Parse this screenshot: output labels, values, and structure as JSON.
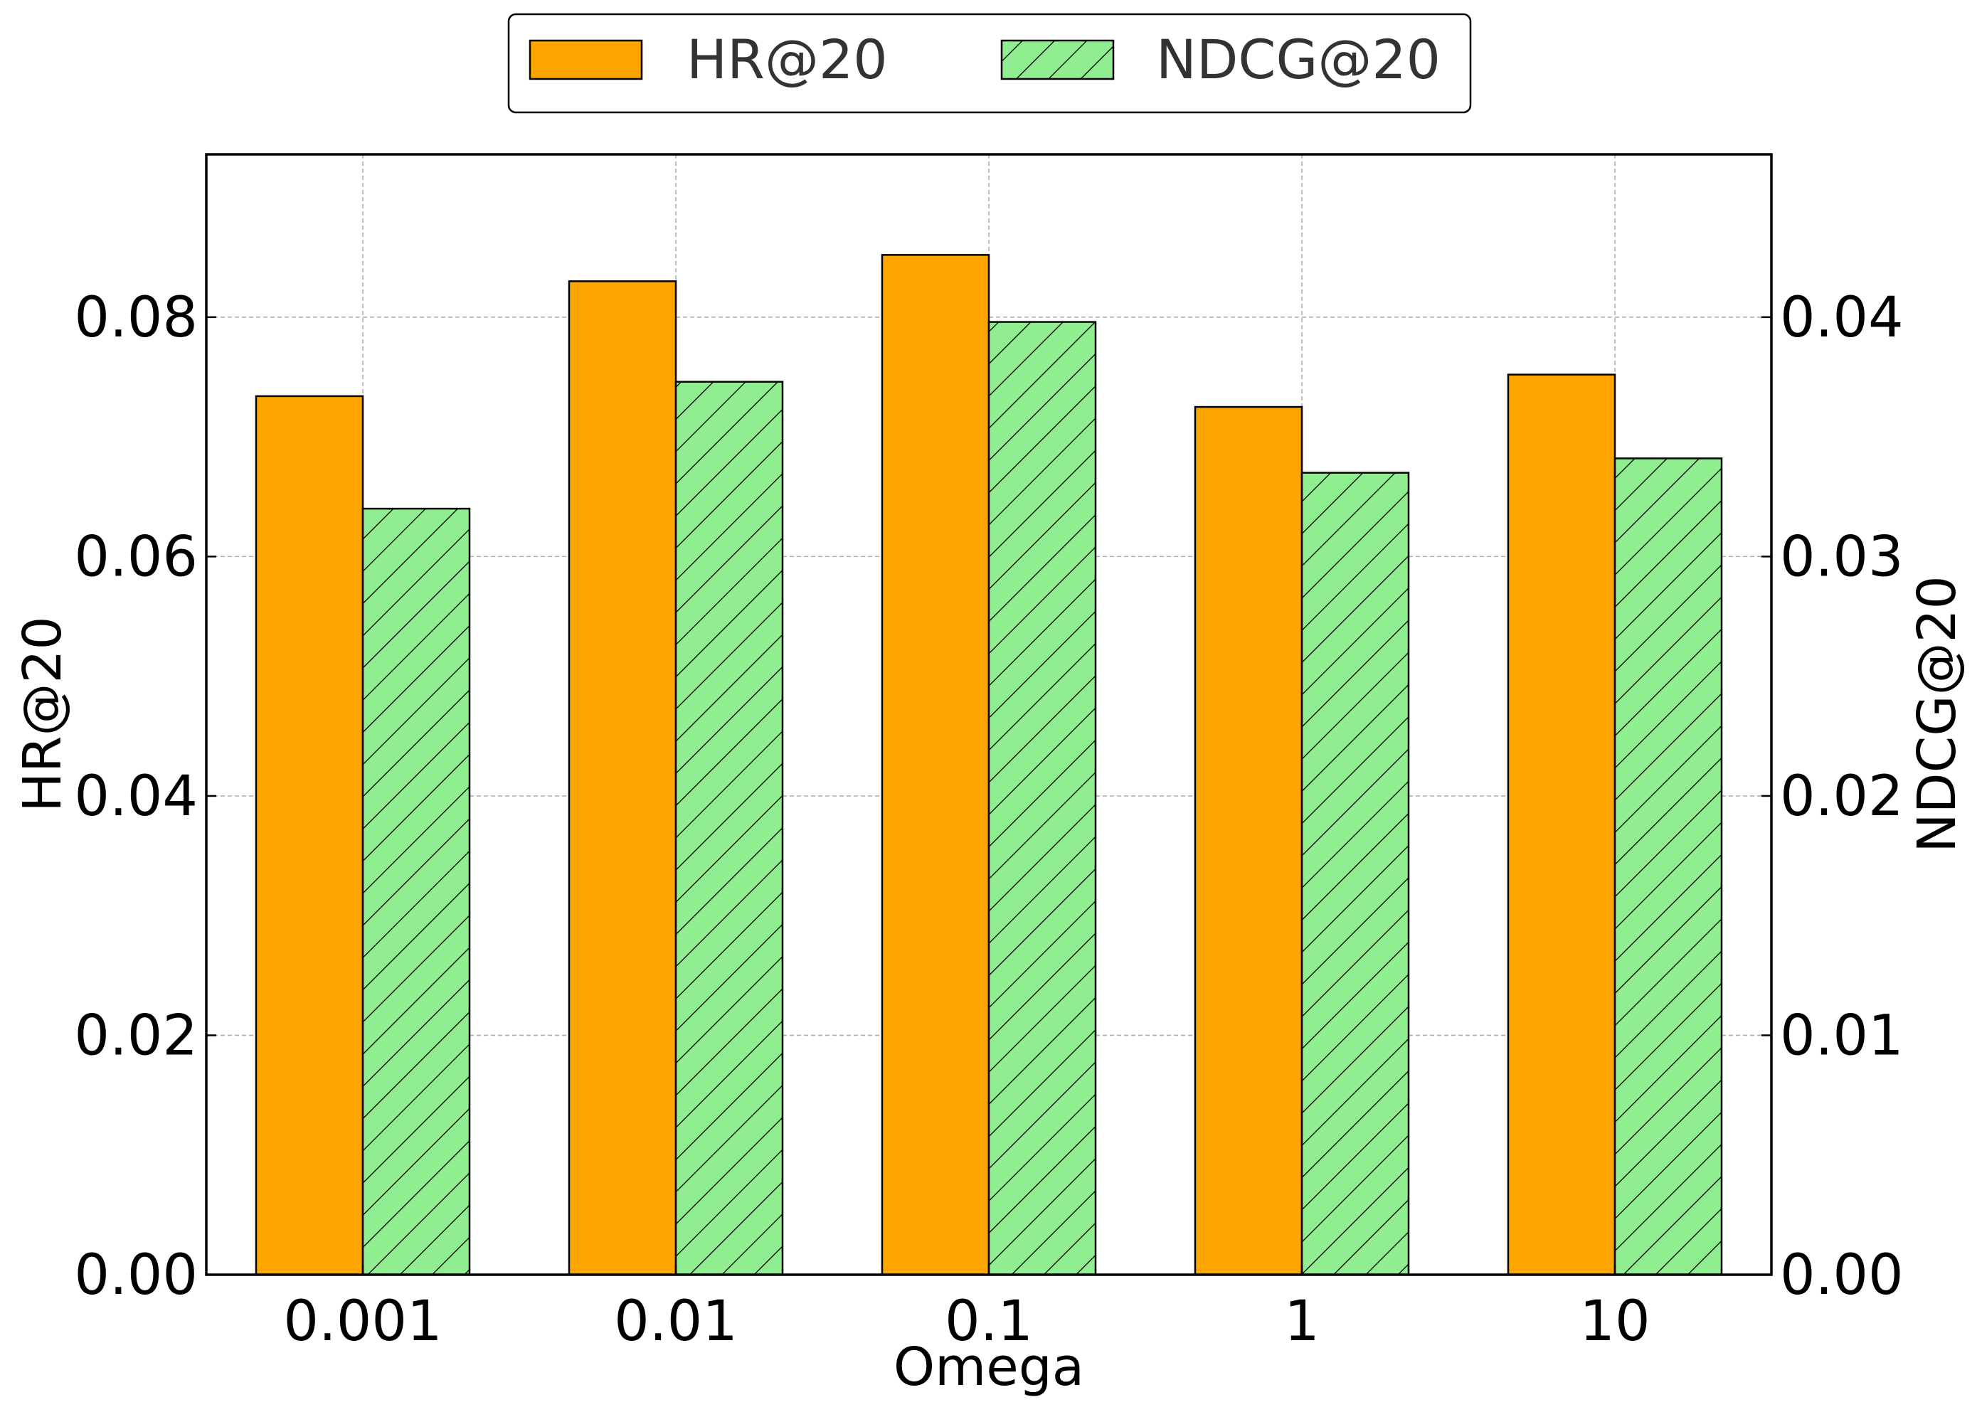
{
  "chart_data": {
    "type": "bar",
    "categories": [
      "0.001",
      "0.01",
      "0.1",
      "1",
      "10"
    ],
    "series": [
      {
        "name": "HR@20",
        "axis": "left",
        "color": "#FFA500",
        "pattern": "solid",
        "values": [
          0.0734,
          0.083,
          0.0852,
          0.0725,
          0.0752
        ]
      },
      {
        "name": "NDCG@20",
        "axis": "right",
        "color": "#90EE90",
        "pattern": "diagonal-hatch",
        "values": [
          0.032,
          0.0373,
          0.0398,
          0.0335,
          0.0341
        ]
      }
    ],
    "xlabel": "Omega",
    "ylabel": "HR@20",
    "ylabel_right": "NDCG@20",
    "ylim": [
      0,
      0.0936
    ],
    "ylim_right": [
      0,
      0.0468
    ],
    "yticks": [
      "0.00",
      "0.02",
      "0.04",
      "0.06",
      "0.08"
    ],
    "yticks_right": [
      "0.00",
      "0.01",
      "0.02",
      "0.03",
      "0.04"
    ],
    "grid": true,
    "legend_position": "top-center"
  }
}
